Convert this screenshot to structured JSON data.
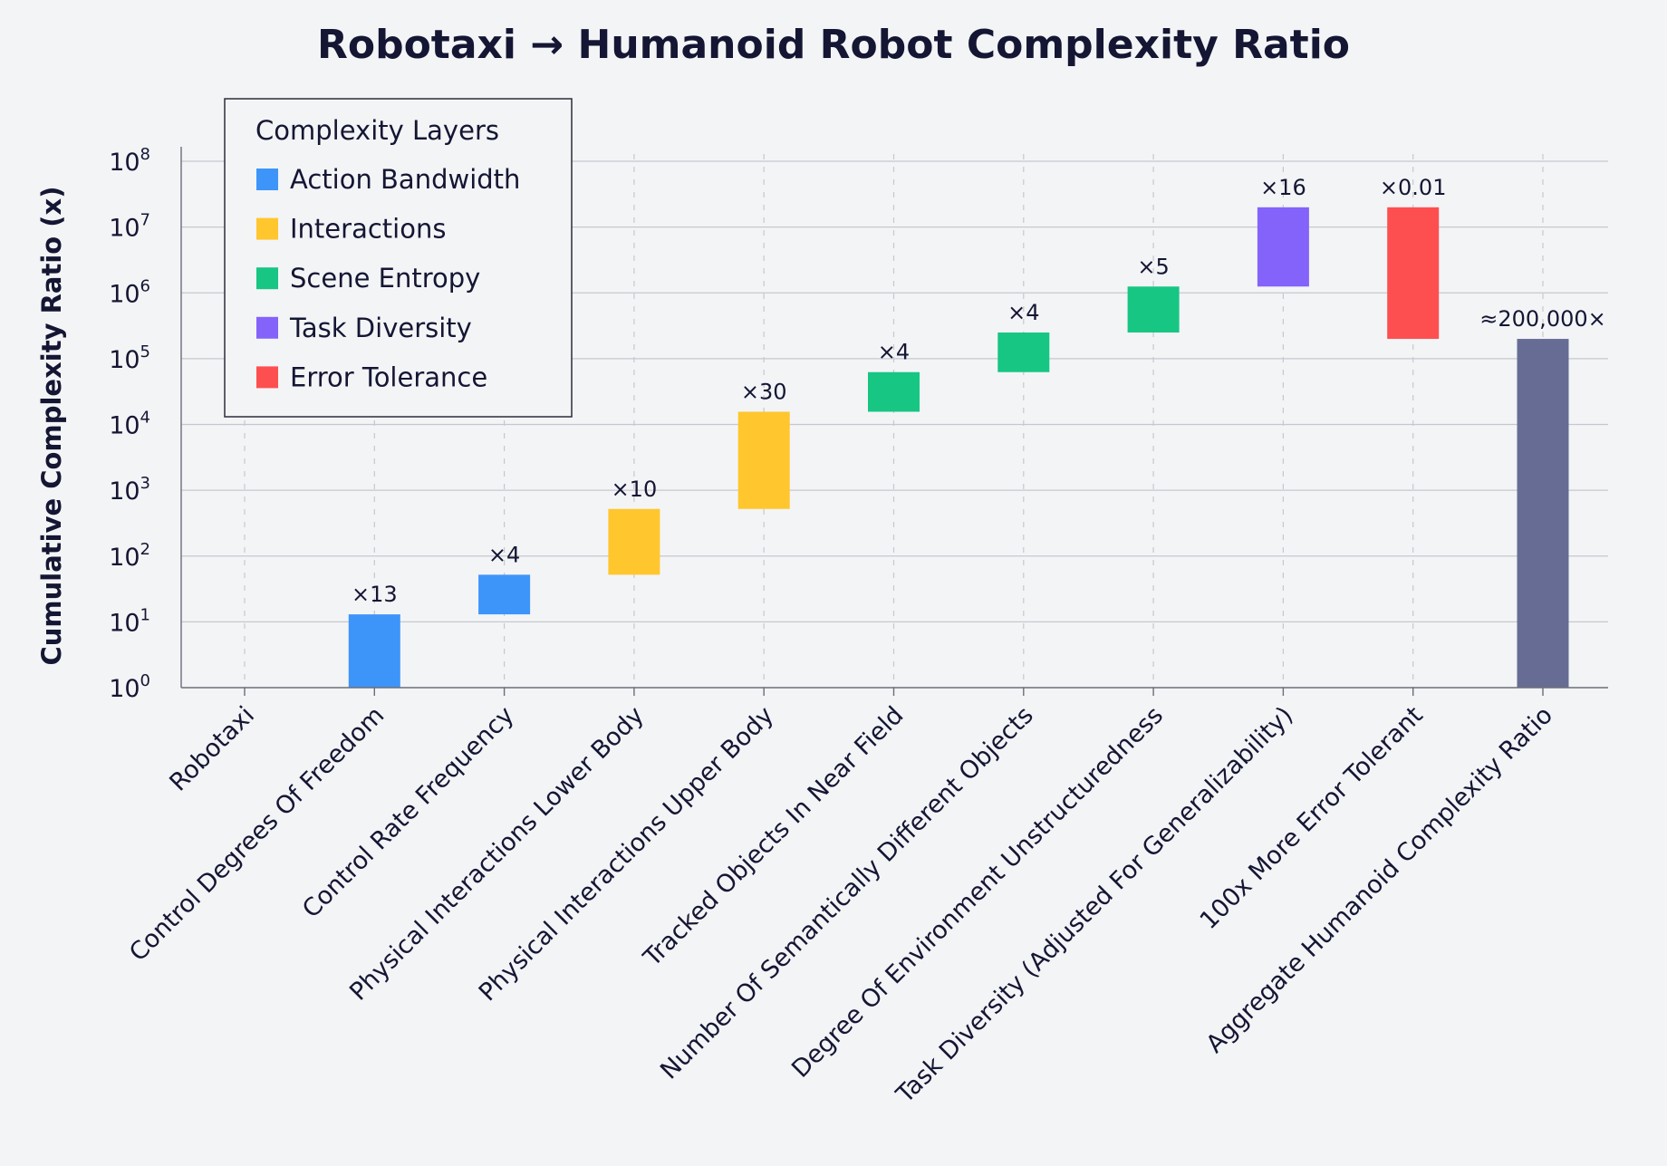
{
  "chart_data": {
    "type": "bar",
    "subtype": "waterfall",
    "title": "Robotaxi → Humanoid Robot Complexity Ratio",
    "xlabel": "",
    "ylabel": "Cumulative Complexity Ratio (x)",
    "yscale": "log",
    "ylim": [
      1,
      100000000
    ],
    "yticks": [
      {
        "base": "10",
        "exp": "0"
      },
      {
        "base": "10",
        "exp": "1"
      },
      {
        "base": "10",
        "exp": "2"
      },
      {
        "base": "10",
        "exp": "3"
      },
      {
        "base": "10",
        "exp": "4"
      },
      {
        "base": "10",
        "exp": "5"
      },
      {
        "base": "10",
        "exp": "6"
      },
      {
        "base": "10",
        "exp": "7"
      },
      {
        "base": "10",
        "exp": "8"
      }
    ],
    "grid": true,
    "legend": {
      "title": "Complexity Layers",
      "position": "top-left",
      "entries": [
        {
          "label": "Action Bandwidth",
          "color": "#3d95fa"
        },
        {
          "label": "Interactions",
          "color": "#ffc62e"
        },
        {
          "label": "Scene Entropy",
          "color": "#17c683"
        },
        {
          "label": "Task Diversity",
          "color": "#8463fa"
        },
        {
          "label": "Error Tolerance",
          "color": "#fe4f50"
        }
      ]
    },
    "bars": [
      {
        "category": "Robotaxi",
        "start": 1,
        "end": 1,
        "multiplier": null,
        "label": "",
        "layer": null,
        "color": null
      },
      {
        "category": "Control Degrees Of Freedom",
        "start": 1,
        "end": 13,
        "multiplier": 13,
        "label": "×13",
        "layer": "Action Bandwidth",
        "color": "#3d95fa"
      },
      {
        "category": "Control Rate Frequency",
        "start": 13,
        "end": 52,
        "multiplier": 4,
        "label": "×4",
        "layer": "Action Bandwidth",
        "color": "#3d95fa"
      },
      {
        "category": "Physical Interactions Lower Body",
        "start": 52,
        "end": 520,
        "multiplier": 10,
        "label": "×10",
        "layer": "Interactions",
        "color": "#ffc62e"
      },
      {
        "category": "Physical Interactions Upper Body",
        "start": 520,
        "end": 15600,
        "multiplier": 30,
        "label": "×30",
        "layer": "Interactions",
        "color": "#ffc62e"
      },
      {
        "category": "Tracked Objects In Near Field",
        "start": 15600,
        "end": 62400,
        "multiplier": 4,
        "label": "×4",
        "layer": "Scene Entropy",
        "color": "#17c683"
      },
      {
        "category": "Number Of Semantically Different Objects",
        "start": 62400,
        "end": 249600,
        "multiplier": 4,
        "label": "×4",
        "layer": "Scene Entropy",
        "color": "#17c683"
      },
      {
        "category": "Degree Of Environment Unstructuredness",
        "start": 249600,
        "end": 1248000,
        "multiplier": 5,
        "label": "×5",
        "layer": "Scene Entropy",
        "color": "#17c683"
      },
      {
        "category": "Task Diversity (Adjusted For Generalizability)",
        "start": 1248000,
        "end": 19968000,
        "multiplier": 16,
        "label": "×16",
        "layer": "Task Diversity",
        "color": "#8463fa"
      },
      {
        "category": "100x More Error Tolerant",
        "start": 19968000,
        "end": 199680,
        "multiplier": 0.01,
        "label": "×0.01",
        "layer": "Error Tolerance",
        "color": "#fe4f50"
      },
      {
        "category": "Aggregate Humanoid Complexity Ratio",
        "start": 1,
        "end": 199680,
        "multiplier": null,
        "label": "≈200,000×",
        "layer": "Total",
        "color": "#676c95"
      }
    ]
  }
}
